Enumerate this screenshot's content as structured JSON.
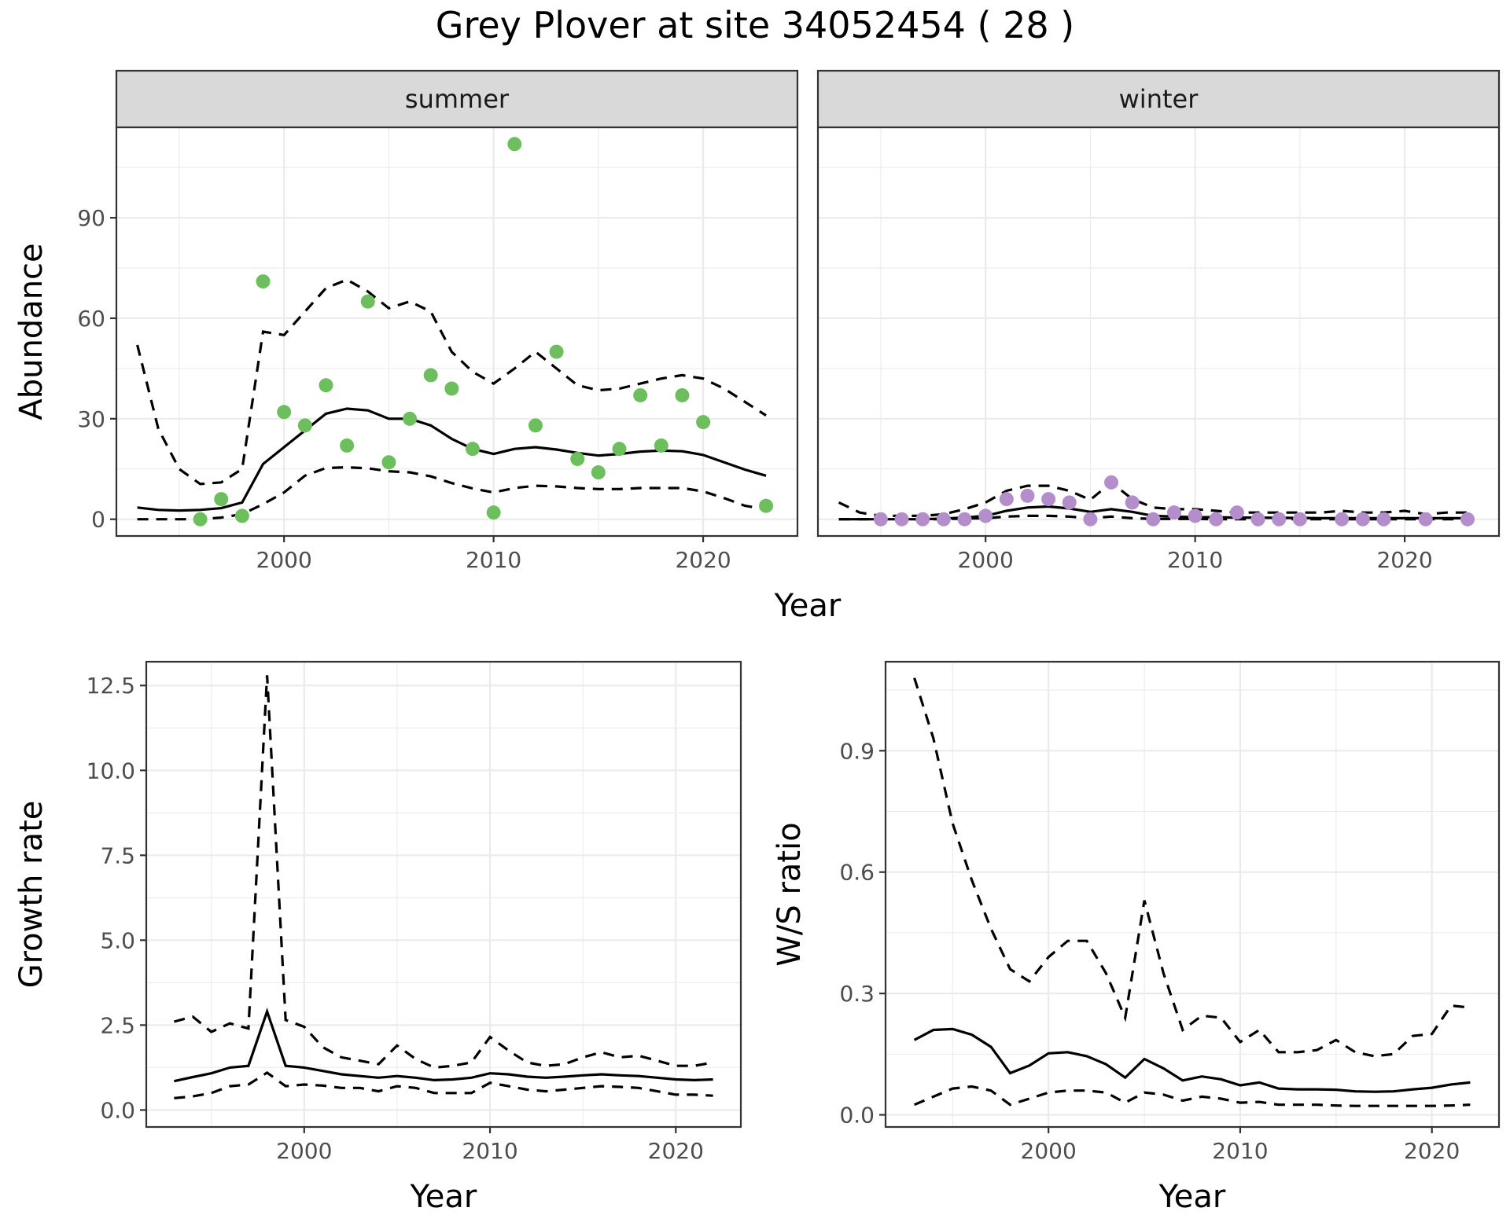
{
  "title": "Grey Plover at site 34052454 ( 28 )",
  "colors": {
    "summer_points": "#6dbf5e",
    "winter_points": "#b38ecb",
    "line": "#000000",
    "strip": "#d9d9d9"
  },
  "chart_data": [
    {
      "type": "line",
      "facet": "summer",
      "xlabel": "Year",
      "ylabel": "Abundance",
      "xlim": [
        1992,
        2024.5
      ],
      "ylim": [
        -5,
        117
      ],
      "xticks": [
        2000,
        2010,
        2020
      ],
      "yticks": [
        0,
        30,
        60,
        90
      ],
      "grid": true,
      "series": [
        {
          "style": "solid",
          "x": [
            1993,
            1994,
            1995,
            1996,
            1997,
            1998,
            1999,
            2000,
            2001,
            2002,
            2003,
            2004,
            2005,
            2006,
            2007,
            2008,
            2009,
            2010,
            2011,
            2012,
            2013,
            2014,
            2015,
            2016,
            2017,
            2018,
            2019,
            2020,
            2021,
            2022,
            2023
          ],
          "y": [
            3.5,
            2.8,
            2.6,
            2.8,
            3.3,
            5,
            16.5,
            21.5,
            26.5,
            31.5,
            33,
            32.5,
            30,
            30,
            28,
            24,
            21,
            19.5,
            21,
            21.5,
            20.8,
            19.8,
            19,
            19.5,
            20.2,
            20.5,
            20.3,
            19.2,
            17,
            14.8,
            13
          ]
        },
        {
          "style": "dashed",
          "x": [
            1993,
            1994,
            1995,
            1996,
            1997,
            1998,
            1999,
            2000,
            2001,
            2002,
            2003,
            2004,
            2005,
            2006,
            2007,
            2008,
            2009,
            2010,
            2011,
            2012,
            2013,
            2014,
            2015,
            2016,
            2017,
            2018,
            2019,
            2020,
            2021,
            2022,
            2023
          ],
          "y": [
            52,
            27,
            15,
            10.5,
            11,
            15,
            56,
            55,
            62,
            69,
            71.5,
            68,
            63,
            65,
            62,
            50,
            44,
            40.5,
            45,
            50,
            45,
            40,
            38.5,
            39,
            40.5,
            42,
            43,
            42,
            39,
            35,
            31
          ]
        },
        {
          "style": "dashed",
          "x": [
            1993,
            1994,
            1995,
            1996,
            1997,
            1998,
            1999,
            2000,
            2001,
            2002,
            2003,
            2004,
            2005,
            2006,
            2007,
            2008,
            2009,
            2010,
            2011,
            2012,
            2013,
            2014,
            2015,
            2016,
            2017,
            2018,
            2019,
            2020,
            2021,
            2022,
            2023
          ],
          "y": [
            0,
            0,
            0,
            0,
            0.5,
            1.5,
            4.5,
            8,
            13,
            15.3,
            15.5,
            15.2,
            14.3,
            14,
            12.8,
            10.8,
            9.2,
            8,
            9.3,
            10,
            9.8,
            9.3,
            9,
            9,
            9.3,
            9.3,
            9.3,
            8.3,
            6.3,
            4,
            3
          ]
        },
        {
          "style": "points",
          "x": [
            1996,
            1997,
            1998,
            1999,
            2000,
            2001,
            2002,
            2003,
            2004,
            2005,
            2006,
            2007,
            2008,
            2009,
            2010,
            2011,
            2012,
            2013,
            2014,
            2015,
            2016,
            2017,
            2018,
            2019,
            2020,
            2023
          ],
          "y": [
            0,
            6,
            1,
            71,
            32,
            28,
            40,
            22,
            65,
            17,
            30,
            43,
            39,
            21,
            2,
            112,
            28,
            50,
            18,
            14,
            21,
            37,
            22,
            37,
            29,
            4
          ]
        }
      ]
    },
    {
      "type": "line",
      "facet": "winter",
      "xlabel": "Year",
      "ylabel": "Abundance",
      "xlim": [
        1992,
        2024.5
      ],
      "ylim": [
        -5,
        117
      ],
      "xticks": [
        2000,
        2010,
        2020
      ],
      "yticks": [
        0,
        30,
        60,
        90
      ],
      "grid": true,
      "series": [
        {
          "style": "solid",
          "x": [
            1993,
            1994,
            1995,
            1996,
            1997,
            1998,
            1999,
            2000,
            2001,
            2002,
            2003,
            2004,
            2005,
            2006,
            2007,
            2008,
            2009,
            2010,
            2011,
            2012,
            2013,
            2014,
            2015,
            2016,
            2017,
            2018,
            2019,
            2020,
            2021,
            2022,
            2023
          ],
          "y": [
            0,
            0,
            0,
            0,
            0,
            0.2,
            0.5,
            1,
            2.5,
            3.5,
            3.8,
            3.2,
            2.2,
            3,
            2.2,
            1,
            0.8,
            0.6,
            0.6,
            0.5,
            0.5,
            0.4,
            0.4,
            0.3,
            0.3,
            0.3,
            0.3,
            0.3,
            0.3,
            0.3,
            0.3
          ]
        },
        {
          "style": "dashed",
          "x": [
            1993,
            1994,
            1995,
            1996,
            1997,
            1998,
            1999,
            2000,
            2001,
            2002,
            2003,
            2004,
            2005,
            2006,
            2007,
            2008,
            2009,
            2010,
            2011,
            2012,
            2013,
            2014,
            2015,
            2016,
            2017,
            2018,
            2019,
            2020,
            2021,
            2022,
            2023
          ],
          "y": [
            5,
            2,
            1,
            1,
            1,
            1.5,
            3,
            5,
            8.5,
            10,
            10,
            8.5,
            5.8,
            11,
            6,
            3.5,
            3,
            3,
            2.5,
            2,
            2,
            2,
            2,
            2,
            2.5,
            2,
            2,
            2.5,
            1.5,
            2,
            2
          ]
        },
        {
          "style": "dashed",
          "x": [
            1993,
            1994,
            1995,
            1996,
            1997,
            1998,
            1999,
            2000,
            2001,
            2002,
            2003,
            2004,
            2005,
            2006,
            2007,
            2008,
            2009,
            2010,
            2011,
            2012,
            2013,
            2014,
            2015,
            2016,
            2017,
            2018,
            2019,
            2020,
            2021,
            2022,
            2023
          ],
          "y": [
            0,
            0,
            0,
            0,
            0,
            0,
            0.2,
            0.3,
            0.8,
            1,
            1,
            0.8,
            0.3,
            0.8,
            0.3,
            0.1,
            0.1,
            0.1,
            0,
            0,
            0,
            0,
            0,
            0,
            0,
            0,
            0,
            0,
            0,
            0,
            0
          ]
        },
        {
          "style": "points",
          "x": [
            1995,
            1996,
            1997,
            1998,
            1999,
            2000,
            2001,
            2002,
            2003,
            2004,
            2005,
            2006,
            2007,
            2008,
            2009,
            2010,
            2011,
            2012,
            2013,
            2014,
            2015,
            2017,
            2018,
            2019,
            2021,
            2023
          ],
          "y": [
            0,
            0,
            0,
            0,
            0,
            1,
            6,
            7,
            6,
            5,
            0,
            11,
            5,
            0,
            2,
            1,
            0,
            2,
            0,
            0,
            0,
            0,
            0,
            0,
            0,
            0
          ]
        }
      ]
    },
    {
      "type": "line",
      "xlabel": "Year",
      "ylabel": "Growth rate",
      "xlim": [
        1991.5,
        2023.5
      ],
      "ylim": [
        -0.5,
        13.2
      ],
      "xticks": [
        2000,
        2010,
        2020
      ],
      "yticks": [
        0.0,
        2.5,
        5.0,
        7.5,
        10.0,
        12.5
      ],
      "ytick_labels": [
        "0.0",
        "2.5",
        "5.0",
        "7.5",
        "10.0",
        "12.5"
      ],
      "grid": true,
      "series": [
        {
          "style": "solid",
          "x": [
            1993,
            1994,
            1995,
            1996,
            1997,
            1998,
            1999,
            2000,
            2001,
            2002,
            2003,
            2004,
            2005,
            2006,
            2007,
            2008,
            2009,
            2010,
            2011,
            2012,
            2013,
            2014,
            2015,
            2016,
            2017,
            2018,
            2019,
            2020,
            2021,
            2022
          ],
          "y": [
            0.85,
            0.97,
            1.08,
            1.25,
            1.3,
            2.9,
            1.3,
            1.25,
            1.15,
            1.05,
            1.0,
            0.95,
            1.0,
            0.95,
            0.88,
            0.9,
            0.95,
            1.08,
            1.05,
            0.98,
            0.95,
            0.98,
            1.02,
            1.05,
            1.02,
            1.0,
            0.95,
            0.9,
            0.88,
            0.9
          ]
        },
        {
          "style": "dashed",
          "x": [
            1993,
            1994,
            1995,
            1996,
            1997,
            1998,
            1999,
            2000,
            2001,
            2002,
            2003,
            2004,
            2005,
            2006,
            2007,
            2008,
            2009,
            2010,
            2011,
            2012,
            2013,
            2014,
            2015,
            2016,
            2017,
            2018,
            2019,
            2020,
            2021,
            2022
          ],
          "y": [
            2.6,
            2.75,
            2.3,
            2.55,
            2.4,
            12.8,
            2.65,
            2.45,
            1.85,
            1.55,
            1.45,
            1.35,
            1.9,
            1.5,
            1.25,
            1.3,
            1.4,
            2.15,
            1.75,
            1.4,
            1.3,
            1.35,
            1.55,
            1.7,
            1.55,
            1.6,
            1.45,
            1.3,
            1.3,
            1.4
          ]
        },
        {
          "style": "dashed",
          "x": [
            1993,
            1994,
            1995,
            1996,
            1997,
            1998,
            1999,
            2000,
            2001,
            2002,
            2003,
            2004,
            2005,
            2006,
            2007,
            2008,
            2009,
            2010,
            2011,
            2012,
            2013,
            2014,
            2015,
            2016,
            2017,
            2018,
            2019,
            2020,
            2021,
            2022
          ],
          "y": [
            0.35,
            0.4,
            0.5,
            0.7,
            0.75,
            1.1,
            0.7,
            0.75,
            0.72,
            0.65,
            0.65,
            0.55,
            0.7,
            0.65,
            0.5,
            0.5,
            0.5,
            0.8,
            0.7,
            0.6,
            0.55,
            0.6,
            0.65,
            0.7,
            0.68,
            0.65,
            0.55,
            0.45,
            0.45,
            0.42
          ]
        }
      ]
    },
    {
      "type": "line",
      "xlabel": "Year",
      "ylabel": "W/S ratio",
      "xlim": [
        1991.5,
        2023.5
      ],
      "ylim": [
        -0.03,
        1.12
      ],
      "xticks": [
        2000,
        2010,
        2020
      ],
      "yticks": [
        0.0,
        0.3,
        0.6,
        0.9
      ],
      "ytick_labels": [
        "0.0",
        "0.3",
        "0.6",
        "0.9"
      ],
      "grid": true,
      "series": [
        {
          "style": "solid",
          "x": [
            1993,
            1994,
            1995,
            1996,
            1997,
            1998,
            1999,
            2000,
            2001,
            2002,
            2003,
            2004,
            2005,
            2006,
            2007,
            2008,
            2009,
            2010,
            2011,
            2012,
            2013,
            2014,
            2015,
            2016,
            2017,
            2018,
            2019,
            2020,
            2021,
            2022
          ],
          "y": [
            0.185,
            0.21,
            0.212,
            0.198,
            0.168,
            0.103,
            0.122,
            0.152,
            0.155,
            0.145,
            0.125,
            0.092,
            0.138,
            0.115,
            0.085,
            0.095,
            0.088,
            0.073,
            0.08,
            0.065,
            0.063,
            0.063,
            0.062,
            0.058,
            0.057,
            0.058,
            0.063,
            0.067,
            0.075,
            0.08
          ]
        },
        {
          "style": "dashed",
          "x": [
            1993,
            1994,
            1995,
            1996,
            1997,
            1998,
            1999,
            2000,
            2001,
            2002,
            2003,
            2004,
            2005,
            2006,
            2007,
            2008,
            2009,
            2010,
            2011,
            2012,
            2013,
            2014,
            2015,
            2016,
            2017,
            2018,
            2019,
            2020,
            2021,
            2022
          ],
          "y": [
            1.08,
            0.93,
            0.72,
            0.58,
            0.46,
            0.36,
            0.33,
            0.39,
            0.43,
            0.43,
            0.35,
            0.24,
            0.53,
            0.35,
            0.21,
            0.245,
            0.24,
            0.18,
            0.21,
            0.155,
            0.155,
            0.16,
            0.185,
            0.155,
            0.145,
            0.15,
            0.195,
            0.2,
            0.27,
            0.265
          ]
        },
        {
          "style": "dashed",
          "x": [
            1993,
            1994,
            1995,
            1996,
            1997,
            1998,
            1999,
            2000,
            2001,
            2002,
            2003,
            2004,
            2005,
            2006,
            2007,
            2008,
            2009,
            2010,
            2011,
            2012,
            2013,
            2014,
            2015,
            2016,
            2017,
            2018,
            2019,
            2020,
            2021,
            2022
          ],
          "y": [
            0.025,
            0.045,
            0.065,
            0.07,
            0.06,
            0.025,
            0.04,
            0.055,
            0.06,
            0.06,
            0.055,
            0.03,
            0.055,
            0.05,
            0.035,
            0.045,
            0.04,
            0.03,
            0.032,
            0.025,
            0.025,
            0.025,
            0.023,
            0.022,
            0.022,
            0.022,
            0.022,
            0.022,
            0.023,
            0.025
          ]
        }
      ]
    }
  ]
}
